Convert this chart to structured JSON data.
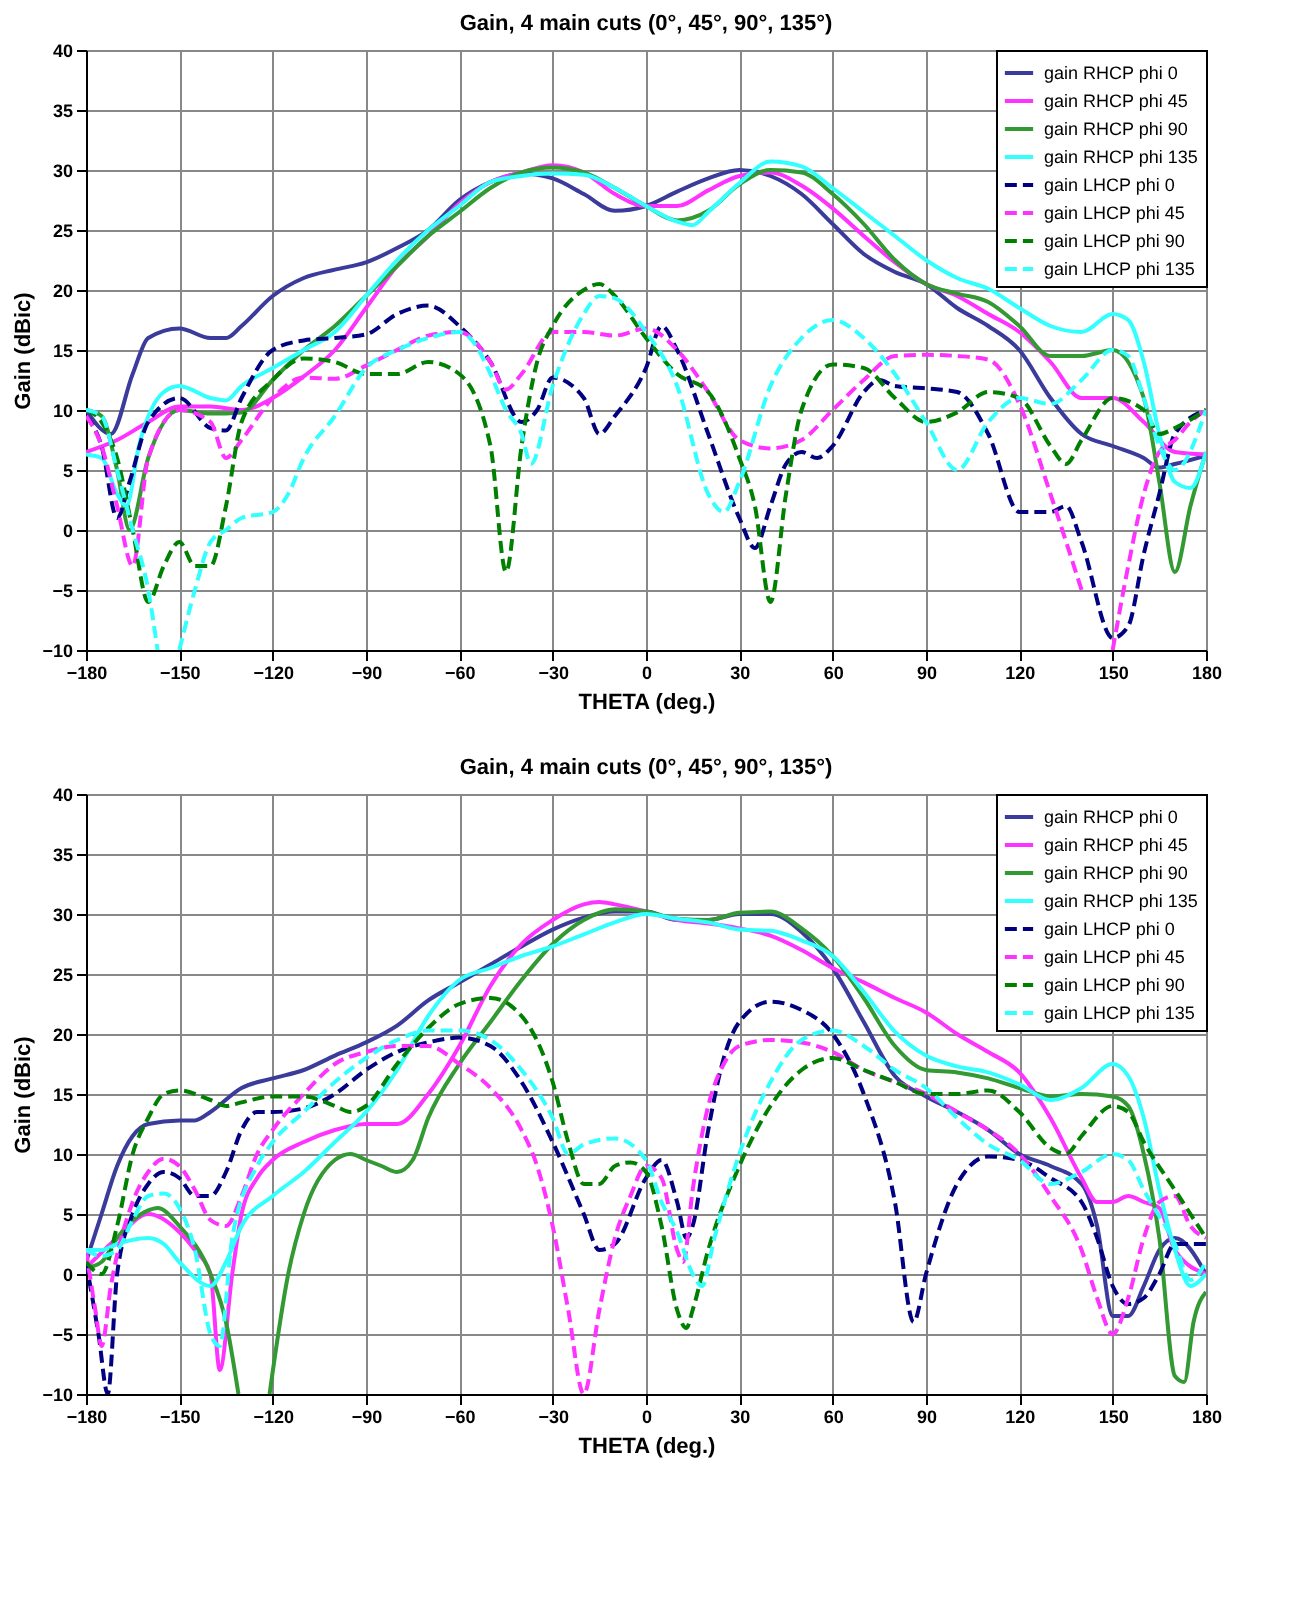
{
  "chart_data": [
    {
      "type": "line",
      "title": "Gain, 4 main cuts (0°, 45°, 90°, 135°)",
      "xlabel": "THETA (deg.)",
      "ylabel": "Gain (dBic)",
      "xlim": [
        -180,
        180
      ],
      "xticks": [
        -180,
        -150,
        -120,
        -90,
        -60,
        -30,
        0,
        30,
        60,
        90,
        120,
        150,
        180
      ],
      "ylim": [
        -10,
        40
      ],
      "yticks": [
        -10,
        -5,
        0,
        5,
        10,
        15,
        20,
        25,
        30,
        35,
        40
      ],
      "grid": true,
      "legend": "top right",
      "series": [
        {
          "name": "gain RHCP phi 0",
          "color": "#3b3b9c",
          "line_style": "solid",
          "x": [
            -180,
            -172,
            -165,
            -160,
            -150,
            -140,
            -135,
            -130,
            -120,
            -110,
            -100,
            -90,
            -80,
            -70,
            -60,
            -50,
            -40,
            -30,
            -20,
            -10,
            0,
            10,
            20,
            30,
            40,
            50,
            60,
            70,
            80,
            90,
            100,
            110,
            120,
            130,
            140,
            150,
            160,
            165,
            170,
            180
          ],
          "values": [
            10,
            8,
            13,
            16,
            16.8,
            16,
            16,
            17,
            19.5,
            21,
            21.7,
            22.3,
            23.5,
            25,
            27.5,
            29,
            29.7,
            29.3,
            28,
            26.6,
            27,
            28.2,
            29.3,
            30,
            29.5,
            28,
            25.5,
            23,
            21.5,
            20.5,
            18.5,
            17,
            15,
            11,
            8,
            7,
            6,
            5.2,
            5.5,
            6.2
          ]
        },
        {
          "name": "gain RHCP phi 45",
          "color": "#ff33ff",
          "line_style": "solid",
          "x": [
            -180,
            -170,
            -160,
            -150,
            -140,
            -130,
            -120,
            -110,
            -100,
            -90,
            -80,
            -70,
            -60,
            -50,
            -40,
            -30,
            -20,
            -10,
            0,
            10,
            20,
            30,
            40,
            50,
            60,
            70,
            80,
            90,
            100,
            110,
            120,
            130,
            140,
            150,
            160,
            170,
            180
          ],
          "values": [
            6.5,
            7.5,
            9,
            10.3,
            10.3,
            10,
            11,
            12.8,
            15,
            18.5,
            22,
            24.5,
            27.2,
            29,
            29.8,
            30.4,
            29.8,
            28,
            27,
            27,
            28.3,
            29.5,
            29.8,
            28.7,
            26.8,
            24.5,
            22.3,
            20.5,
            19.5,
            18,
            16.5,
            14,
            11,
            11,
            9,
            6.5,
            6.3
          ]
        },
        {
          "name": "gain RHCP phi 90",
          "color": "#339933",
          "line_style": "solid",
          "x": [
            -180,
            -175,
            -170,
            -166,
            -160,
            -150,
            -140,
            -130,
            -120,
            -110,
            -100,
            -90,
            -80,
            -70,
            -60,
            -50,
            -40,
            -30,
            -20,
            -10,
            0,
            10,
            20,
            30,
            40,
            50,
            60,
            70,
            80,
            90,
            100,
            110,
            120,
            130,
            140,
            150,
            160,
            165,
            170,
            175,
            180
          ],
          "values": [
            10,
            9.5,
            5,
            0,
            6,
            10,
            9.7,
            9.8,
            12.5,
            15,
            17,
            19.5,
            22,
            24.5,
            26.5,
            28.5,
            29.8,
            30.2,
            29.8,
            28.5,
            27,
            25.8,
            26.6,
            28.8,
            30,
            29.8,
            28,
            25.5,
            22.5,
            20.5,
            19.7,
            19,
            17,
            14.5,
            14.5,
            15,
            11,
            4,
            -3.5,
            2,
            6.5
          ]
        },
        {
          "name": "gain RHCP phi 135",
          "color": "#33ffff",
          "line_style": "solid",
          "x": [
            -180,
            -175,
            -170,
            -167,
            -163,
            -155,
            -150,
            -140,
            -135,
            -130,
            -120,
            -110,
            -100,
            -90,
            -80,
            -70,
            -60,
            -50,
            -40,
            -30,
            -20,
            -10,
            0,
            10,
            15,
            20,
            30,
            40,
            50,
            60,
            70,
            80,
            90,
            100,
            110,
            120,
            130,
            140,
            150,
            155,
            160,
            165,
            170,
            175,
            180
          ],
          "values": [
            6.3,
            6,
            3,
            2,
            7,
            11.5,
            12,
            11,
            10.8,
            12,
            13.5,
            15,
            16.5,
            19.5,
            22.5,
            25,
            27,
            29,
            29.5,
            29.7,
            29.6,
            28.5,
            27,
            25.7,
            25.4,
            26.5,
            28.9,
            30.7,
            30.3,
            28.5,
            26.5,
            24.5,
            22.5,
            21,
            20.1,
            18.5,
            17,
            16.5,
            18,
            17.5,
            14,
            8,
            4,
            3.5,
            6.5
          ]
        },
        {
          "name": "gain LHCP phi 0",
          "color": "#000080",
          "line_style": "dashed",
          "x": [
            -180,
            -175,
            -170,
            -166,
            -160,
            -150,
            -140,
            -135,
            -130,
            -120,
            -110,
            -100,
            -90,
            -80,
            -70,
            -60,
            -50,
            -40,
            -35,
            -30,
            -20,
            -15,
            -10,
            0,
            5,
            10,
            20,
            30,
            35,
            40,
            45,
            50,
            55,
            60,
            70,
            75,
            80,
            90,
            100,
            110,
            120,
            130,
            135,
            140,
            150,
            155,
            160,
            165,
            170,
            180
          ],
          "values": [
            9.5,
            7,
            1,
            4,
            9,
            11,
            8.5,
            8.3,
            11,
            15,
            15.8,
            16,
            16.3,
            18,
            18.7,
            17,
            14,
            9,
            10,
            12.7,
            11,
            8,
            9.5,
            13.5,
            17,
            15,
            8,
            1,
            -1.5,
            2,
            5.5,
            6.5,
            6,
            7,
            11.5,
            12.5,
            12,
            11.8,
            11.5,
            8,
            1.5,
            1.5,
            2,
            -1,
            -9,
            -8,
            -2,
            3,
            8,
            10
          ]
        },
        {
          "name": "gain LHCP phi 45",
          "color": "#ff33ff",
          "line_style": "dashed",
          "x": [
            -180,
            -175,
            -170,
            -165,
            -160,
            -150,
            -140,
            -135,
            -130,
            -120,
            -110,
            -100,
            -90,
            -80,
            -70,
            -60,
            -50,
            -45,
            -40,
            -30,
            -20,
            -10,
            0,
            10,
            20,
            30,
            40,
            50,
            60,
            70,
            80,
            90,
            100,
            110,
            120,
            130,
            140,
            145,
            150,
            155,
            160,
            165,
            170,
            175,
            180
          ],
          "values": [
            9.5,
            7,
            2,
            -3,
            6,
            10,
            9,
            6,
            7.5,
            11,
            12.7,
            12.6,
            13.7,
            15,
            16.2,
            16.5,
            14,
            11.7,
            13,
            16.5,
            16.5,
            16.2,
            16.8,
            15,
            11.5,
            7.5,
            6.8,
            7.5,
            10,
            12.5,
            14.5,
            14.6,
            14.5,
            14.2,
            10.5,
            3,
            -5,
            null,
            -10,
            -3,
            3,
            6.5,
            7.5,
            9,
            10
          ]
        },
        {
          "name": "gain LHCP phi 90",
          "color": "#008000",
          "line_style": "dashed",
          "x": [
            -180,
            -175,
            -170,
            -165,
            -160,
            -155,
            -150,
            -145,
            -140,
            -135,
            -130,
            -120,
            -110,
            -100,
            -90,
            -80,
            -70,
            -60,
            -50,
            -45,
            -40,
            -35,
            -30,
            -20,
            -15,
            -10,
            0,
            10,
            20,
            30,
            35,
            40,
            45,
            50,
            60,
            70,
            80,
            90,
            100,
            110,
            120,
            130,
            135,
            140,
            150,
            160,
            165,
            170,
            180
          ],
          "values": [
            10,
            9,
            6,
            0,
            -6,
            -3,
            -1,
            -3,
            -3,
            2,
            9,
            12.5,
            14.3,
            14,
            13,
            13,
            14,
            13,
            7,
            -3.5,
            7,
            14,
            17,
            20,
            20.5,
            19.5,
            16,
            13,
            11.5,
            6,
            2,
            -6,
            3,
            10,
            13.8,
            13.5,
            11,
            9,
            9.8,
            11.5,
            11,
            7,
            5.5,
            7.5,
            11,
            10,
            8,
            8.5,
            10
          ]
        },
        {
          "name": "gain LHCP phi 135",
          "color": "#33ffff",
          "line_style": "dashed",
          "x": [
            -180,
            -175,
            -170,
            -165,
            -160,
            -157,
            -155,
            -150,
            -145,
            -140,
            -135,
            -130,
            -120,
            -115,
            -110,
            -100,
            -90,
            -80,
            -70,
            -60,
            -55,
            -50,
            -45,
            -40,
            -37,
            -30,
            -20,
            -15,
            -10,
            0,
            10,
            20,
            25,
            30,
            40,
            50,
            60,
            70,
            80,
            90,
            100,
            110,
            120,
            130,
            140,
            150,
            155,
            160,
            165,
            170,
            180
          ],
          "values": [
            10,
            9.5,
            5,
            0,
            -5,
            -10,
            null,
            -10,
            -5,
            -1,
            0,
            1,
            1.5,
            3,
            6,
            9.5,
            13.5,
            15,
            16,
            16.5,
            15.5,
            13,
            10,
            8,
            5.5,
            12,
            18,
            19.5,
            19.3,
            16.5,
            12,
            3,
            1.5,
            4,
            12,
            16,
            17.5,
            16,
            13,
            9,
            5,
            9,
            11,
            10.5,
            12.5,
            15,
            14.5,
            11,
            7,
            5,
            10
          ]
        }
      ]
    },
    {
      "type": "line",
      "title": "Gain, 4 main cuts (0°, 45°, 90°, 135°)",
      "xlabel": "THETA (deg.)",
      "ylabel": "Gain (dBic)",
      "xlim": [
        -180,
        180
      ],
      "xticks": [
        -180,
        -150,
        -120,
        -90,
        -60,
        -30,
        0,
        30,
        60,
        90,
        120,
        150,
        180
      ],
      "ylim": [
        -10,
        40
      ],
      "yticks": [
        -10,
        -5,
        0,
        5,
        10,
        15,
        20,
        25,
        30,
        35,
        40
      ],
      "grid": true,
      "legend": "top right",
      "series": [
        {
          "name": "gain RHCP phi 0",
          "color": "#3b3b9c",
          "line_style": "solid",
          "x": [
            -180,
            -175,
            -170,
            -165,
            -160,
            -150,
            -145,
            -140,
            -130,
            -120,
            -110,
            -100,
            -90,
            -80,
            -70,
            -60,
            -50,
            -40,
            -30,
            -20,
            -10,
            0,
            10,
            20,
            30,
            40,
            50,
            60,
            70,
            80,
            90,
            100,
            110,
            120,
            130,
            140,
            145,
            150,
            155,
            160,
            165,
            170,
            180
          ],
          "values": [
            1,
            5,
            9,
            11.5,
            12.5,
            12.8,
            12.8,
            13.5,
            15.5,
            16.3,
            17,
            18.2,
            19.3,
            20.7,
            22.8,
            24.3,
            25.8,
            27.3,
            28.7,
            29.7,
            30.2,
            30.2,
            29.5,
            29.5,
            30,
            30,
            28.5,
            25.5,
            21,
            16.5,
            14.8,
            13.5,
            12,
            10,
            9,
            7.5,
            4,
            -3.5,
            -3.5,
            -1,
            2,
            3,
            0
          ]
        },
        {
          "name": "gain RHCP phi 45",
          "color": "#ff33ff",
          "line_style": "solid",
          "x": [
            -180,
            -170,
            -160,
            -150,
            -145,
            -140,
            -137,
            -133,
            -130,
            -125,
            -120,
            -110,
            -100,
            -90,
            -80,
            -70,
            -60,
            -50,
            -40,
            -30,
            -20,
            -15,
            -10,
            0,
            10,
            20,
            30,
            40,
            50,
            60,
            70,
            80,
            90,
            100,
            110,
            120,
            130,
            140,
            145,
            150,
            155,
            160,
            165,
            170,
            180
          ],
          "values": [
            0.5,
            3,
            5,
            3.5,
            2,
            0,
            -8,
            0,
            5,
            8,
            9.5,
            11,
            12,
            12.5,
            12.5,
            15,
            19,
            24,
            27.5,
            29.5,
            30.8,
            31,
            30.8,
            30.2,
            29.5,
            29.2,
            28.8,
            28.2,
            27,
            25.5,
            24.3,
            23,
            21.8,
            20,
            18.5,
            16.8,
            13,
            8,
            6,
            6,
            6.5,
            6,
            5.5,
            2,
            0
          ]
        },
        {
          "name": "gain RHCP phi 90",
          "color": "#339933",
          "line_style": "solid",
          "x": [
            -180,
            -175,
            -170,
            -160,
            -157,
            -150,
            -140,
            -135,
            -131,
            -125,
            -121,
            -115,
            -110,
            -100,
            -95,
            -90,
            -85,
            -80,
            -75,
            -70,
            -60,
            -50,
            -40,
            -30,
            -20,
            -10,
            0,
            10,
            20,
            30,
            40,
            50,
            60,
            70,
            80,
            90,
            100,
            110,
            120,
            130,
            140,
            150,
            155,
            160,
            165,
            170,
            173,
            176,
            180
          ],
          "values": [
            0.5,
            1,
            3,
            5.3,
            5.5,
            4,
            0,
            -4,
            -10,
            null,
            -10,
            0,
            5,
            9.5,
            10,
            9.5,
            9,
            8.5,
            9.5,
            13,
            17.5,
            21,
            24.5,
            27.5,
            29.5,
            30.4,
            30.2,
            29.6,
            29.5,
            30.1,
            30.2,
            28.8,
            26.5,
            23,
            19,
            17,
            16.8,
            16.3,
            15.5,
            14.8,
            15,
            14.8,
            14,
            10,
            3,
            -8.5,
            -9,
            -4,
            -1.5
          ]
        },
        {
          "name": "gain RHCP phi 135",
          "color": "#33ffff",
          "line_style": "solid",
          "x": [
            -180,
            -175,
            -170,
            -160,
            -155,
            -150,
            -140,
            -135,
            -130,
            -120,
            -110,
            -100,
            -90,
            -80,
            -70,
            -60,
            -50,
            -40,
            -30,
            -20,
            -10,
            0,
            10,
            20,
            30,
            40,
            50,
            60,
            70,
            80,
            90,
            100,
            110,
            120,
            130,
            140,
            150,
            155,
            160,
            165,
            170,
            175,
            180
          ],
          "values": [
            2,
            2,
            2.5,
            3,
            2.5,
            1,
            -1,
            1,
            4,
            6.5,
            8.5,
            11,
            13.5,
            17,
            21.5,
            24.5,
            25.5,
            26.5,
            27.3,
            28.3,
            29.3,
            30,
            29.6,
            29.3,
            28.7,
            28.6,
            27.8,
            26.5,
            23.5,
            20.2,
            18.2,
            17.3,
            16.8,
            15.8,
            14.5,
            15.5,
            17.5,
            16.5,
            13,
            7,
            2,
            -1,
            0
          ]
        },
        {
          "name": "gain LHCP phi 0",
          "color": "#000080",
          "line_style": "dashed",
          "x": [
            -180,
            -176,
            -173,
            -170,
            -165,
            -160,
            -155,
            -150,
            -145,
            -140,
            -135,
            -130,
            -125,
            -120,
            -110,
            -100,
            -90,
            -80,
            -70,
            -60,
            -50,
            -40,
            -30,
            -20,
            -15,
            -10,
            0,
            5,
            10,
            13,
            15,
            20,
            25,
            30,
            40,
            50,
            60,
            70,
            80,
            86,
            90,
            100,
            110,
            120,
            130,
            140,
            145,
            150,
            155,
            160,
            165,
            170,
            180
          ],
          "values": [
            1,
            -5,
            -10,
            0,
            5,
            7.5,
            8.5,
            8,
            6.5,
            6.5,
            8.5,
            12,
            13.5,
            13.5,
            13.8,
            15,
            17,
            18.5,
            19.3,
            19.7,
            19,
            16,
            11,
            5,
            2,
            2.5,
            8,
            9.5,
            6,
            3,
            4,
            12,
            18,
            21,
            22.7,
            22,
            20,
            15,
            6,
            -4,
            0,
            7.5,
            9.8,
            9.5,
            8,
            6,
            3,
            -1,
            -2.5,
            -2,
            0,
            2.5,
            2.5
          ]
        },
        {
          "name": "gain LHCP phi 45",
          "color": "#ff33ff",
          "line_style": "dashed",
          "x": [
            -180,
            -177,
            -175,
            -172,
            -165,
            -160,
            -155,
            -150,
            -145,
            -140,
            -135,
            -130,
            -125,
            -120,
            -110,
            -100,
            -90,
            -80,
            -70,
            -60,
            -50,
            -40,
            -35,
            -30,
            -25,
            -20,
            -15,
            -10,
            -5,
            0,
            5,
            10,
            12,
            15,
            20,
            25,
            30,
            40,
            50,
            60,
            70,
            80,
            90,
            100,
            110,
            120,
            130,
            140,
            145,
            150,
            155,
            160,
            165,
            170,
            175,
            180
          ],
          "values": [
            2,
            -3,
            -6,
            -1,
            6,
            8.5,
            9.6,
            9,
            7,
            4.5,
            4,
            6.5,
            10,
            12,
            15,
            17.5,
            18.5,
            19,
            19,
            17.5,
            15.5,
            12,
            9,
            4,
            -3,
            -10,
            -3,
            3,
            6.5,
            9,
            8,
            2,
            1,
            7,
            14,
            17.5,
            19,
            19.5,
            19.3,
            18.5,
            17,
            16,
            15,
            13.5,
            12,
            10,
            6.5,
            2,
            -2,
            -5,
            -2,
            3,
            6,
            6.5,
            4,
            3
          ]
        },
        {
          "name": "gain LHCP phi 90",
          "color": "#008000",
          "line_style": "dashed",
          "x": [
            -180,
            -175,
            -170,
            -165,
            -160,
            -155,
            -150,
            -140,
            -135,
            -130,
            -120,
            -110,
            -100,
            -95,
            -90,
            -80,
            -70,
            -60,
            -50,
            -40,
            -30,
            -25,
            -20,
            -15,
            -10,
            -5,
            0,
            5,
            10,
            13,
            15,
            20,
            30,
            40,
            50,
            60,
            70,
            80,
            90,
            100,
            110,
            120,
            130,
            135,
            140,
            150,
            155,
            160,
            170,
            180
          ],
          "values": [
            1,
            0,
            4,
            10,
            13,
            15,
            15.3,
            14.5,
            14,
            14.3,
            14.8,
            14.8,
            14,
            13.5,
            14,
            17.5,
            20.5,
            22.5,
            23,
            21.5,
            16,
            11,
            7.5,
            7.5,
            9,
            9.3,
            8.5,
            4,
            -3,
            -4.5,
            -3,
            2,
            9,
            14,
            17,
            18,
            17,
            16,
            15,
            15,
            15.3,
            13.5,
            10.5,
            10,
            11.5,
            14,
            13.5,
            11,
            7,
            3
          ]
        },
        {
          "name": "gain LHCP phi 135",
          "color": "#33ffff",
          "line_style": "dashed",
          "x": [
            -180,
            -175,
            -170,
            -165,
            -160,
            -155,
            -150,
            -145,
            -140,
            -137,
            -133,
            -125,
            -120,
            -110,
            -100,
            -90,
            -80,
            -70,
            -60,
            -50,
            -40,
            -30,
            -25,
            -20,
            -10,
            0,
            5,
            10,
            15,
            18,
            22,
            30,
            40,
            50,
            60,
            70,
            80,
            90,
            100,
            110,
            120,
            130,
            140,
            150,
            155,
            160,
            170,
            175,
            180
          ],
          "values": [
            2,
            1.5,
            2,
            4.5,
            6.5,
            6.7,
            5.5,
            2,
            -5,
            -6,
            3,
            9,
            11,
            13.5,
            16,
            18,
            19.5,
            20.3,
            20.3,
            19.5,
            17,
            13,
            10,
            10.8,
            11.3,
            9.5,
            6,
            3.5,
            0,
            -1,
            3,
            10,
            16,
            19.5,
            20.3,
            19,
            17,
            15.5,
            13,
            10.8,
            9.5,
            7.5,
            8.5,
            10,
            9.5,
            7,
            2.5,
            -0.5,
            1
          ]
        }
      ]
    }
  ]
}
